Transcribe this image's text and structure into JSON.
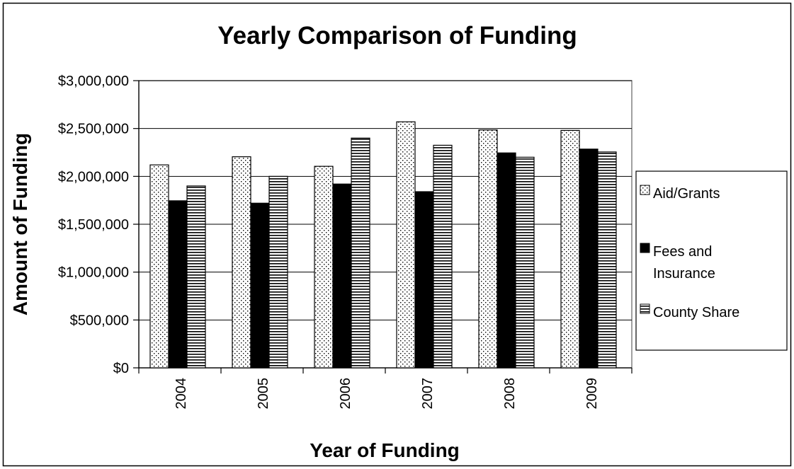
{
  "chart_data": {
    "type": "bar",
    "title": "Yearly Comparison of Funding",
    "xlabel": "Year of Funding",
    "ylabel": "Amount of Funding",
    "categories": [
      "2004",
      "2005",
      "2006",
      "2007",
      "2008",
      "2009"
    ],
    "series": [
      {
        "name": "Aid/Grants",
        "legend_lines": [
          "Aid/Grants"
        ],
        "pattern": "dots",
        "values": [
          2120000,
          2205000,
          2105000,
          2570000,
          2485000,
          2480000
        ]
      },
      {
        "name": "Fees and Insurance",
        "legend_lines": [
          "Fees and",
          "Insurance"
        ],
        "pattern": "solid",
        "values": [
          1745000,
          1720000,
          1920000,
          1840000,
          2245000,
          2285000
        ]
      },
      {
        "name": "County Share",
        "legend_lines": [
          "County Share"
        ],
        "pattern": "hlines",
        "values": [
          1900000,
          2000000,
          2400000,
          2325000,
          2200000,
          2255000
        ]
      }
    ],
    "ylim": [
      0,
      3000000
    ],
    "yticks": [
      0,
      500000,
      1000000,
      1500000,
      2000000,
      2500000,
      3000000
    ],
    "ytick_labels": [
      "$0",
      "$500,000",
      "$1,000,000",
      "$1,500,000",
      "$2,000,000",
      "$2,500,000",
      "$3,000,000"
    ],
    "grid": true,
    "legend_position": "right",
    "x_tick_rotation": "vertical",
    "colors": {
      "bar_fill": "#000000",
      "background": "#ffffff",
      "plot_border": "#808080",
      "grid": "#000000"
    }
  }
}
